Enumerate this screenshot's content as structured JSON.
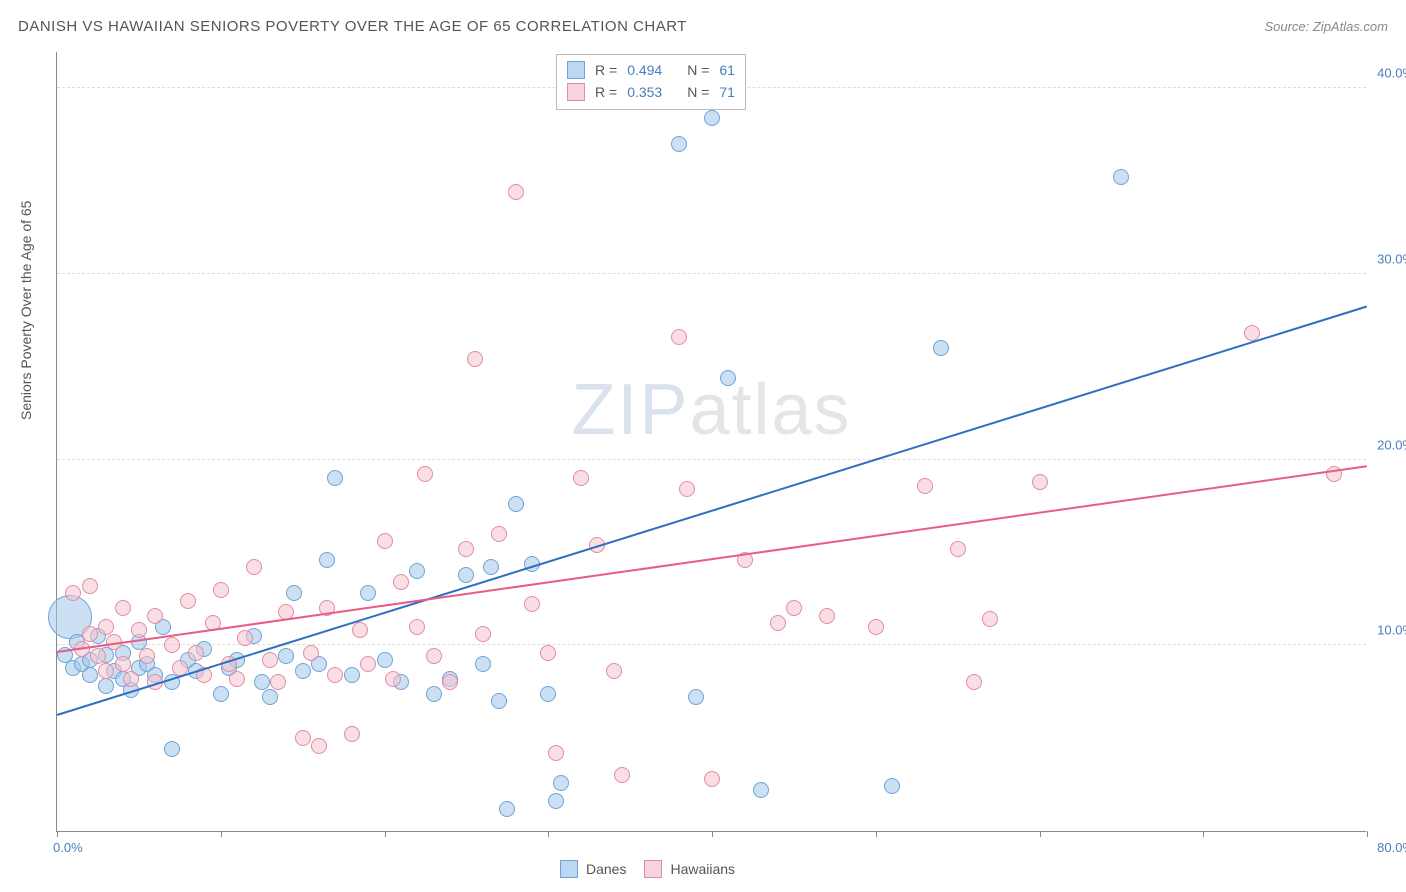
{
  "title": "DANISH VS HAWAIIAN SENIORS POVERTY OVER THE AGE OF 65 CORRELATION CHART",
  "source_prefix": "Source: ",
  "source_name": "ZipAtlas.com",
  "y_axis_title": "Seniors Poverty Over the Age of 65",
  "watermark": {
    "part1": "ZIP",
    "part2": "atlas"
  },
  "chart": {
    "type": "scatter",
    "xlim": [
      0,
      80
    ],
    "ylim": [
      0,
      42
    ],
    "x_ticks_at": [
      0,
      10,
      20,
      30,
      40,
      50,
      60,
      70,
      80
    ],
    "x_labels": {
      "min": "0.0%",
      "max": "80.0%"
    },
    "y_gridlines": [
      {
        "v": 10,
        "label": "10.0%"
      },
      {
        "v": 20,
        "label": "20.0%"
      },
      {
        "v": 30,
        "label": "30.0%"
      },
      {
        "v": 40,
        "label": "40.0%"
      }
    ],
    "background_color": "#ffffff",
    "grid_color": "#dddddd",
    "axis_color": "#888888",
    "label_color": "#4a7ebb",
    "marker_radius": 8,
    "series": [
      {
        "key": "danes",
        "name": "Danes",
        "fill": "rgba(160,198,232,0.55)",
        "stroke": "#6fa3d8",
        "trend_color": "#2e6fc4",
        "trend": {
          "x0": 0,
          "y0": 6.2,
          "x1": 80,
          "y1": 28.2
        },
        "R": "0.494",
        "N": "61",
        "points": [
          [
            0.5,
            9.5
          ],
          [
            0.8,
            11.5,
            22
          ],
          [
            1,
            8.8
          ],
          [
            1.2,
            10.2
          ],
          [
            1.5,
            9
          ],
          [
            2,
            9.2
          ],
          [
            2,
            8.4
          ],
          [
            2.5,
            10.5
          ],
          [
            3,
            7.8
          ],
          [
            3,
            9.5
          ],
          [
            3.5,
            8.6
          ],
          [
            4,
            8.2
          ],
          [
            4,
            9.6
          ],
          [
            4.5,
            7.6
          ],
          [
            5,
            8.8
          ],
          [
            5,
            10.2
          ],
          [
            5.5,
            9
          ],
          [
            6,
            8.4
          ],
          [
            6.5,
            11
          ],
          [
            7,
            8
          ],
          [
            7,
            4.4
          ],
          [
            8,
            9.2
          ],
          [
            8.5,
            8.6
          ],
          [
            9,
            9.8
          ],
          [
            10,
            7.4
          ],
          [
            10.5,
            8.8
          ],
          [
            11,
            9.2
          ],
          [
            12,
            10.5
          ],
          [
            12.5,
            8.0
          ],
          [
            13,
            7.2
          ],
          [
            14,
            9.4
          ],
          [
            14.5,
            12.8
          ],
          [
            15,
            8.6
          ],
          [
            16,
            9.0
          ],
          [
            16.5,
            14.6
          ],
          [
            17,
            19.0
          ],
          [
            18,
            8.4
          ],
          [
            19,
            12.8
          ],
          [
            20,
            9.2
          ],
          [
            21,
            8.0
          ],
          [
            22,
            14.0
          ],
          [
            23,
            7.4
          ],
          [
            24,
            8.2
          ],
          [
            25,
            13.8
          ],
          [
            26,
            9.0
          ],
          [
            26.5,
            14.2
          ],
          [
            27,
            7.0
          ],
          [
            27.5,
            1.2
          ],
          [
            28,
            17.6
          ],
          [
            29,
            14.4
          ],
          [
            30,
            7.4
          ],
          [
            30.5,
            1.6
          ],
          [
            30.8,
            2.6
          ],
          [
            38,
            37.0
          ],
          [
            39,
            7.2
          ],
          [
            40,
            38.4
          ],
          [
            41,
            24.4
          ],
          [
            43,
            2.2
          ],
          [
            51,
            2.4
          ],
          [
            54,
            26.0
          ],
          [
            65,
            35.2
          ]
        ]
      },
      {
        "key": "hawaiians",
        "name": "Hawaiians",
        "fill": "rgba(244,194,206,0.55)",
        "stroke": "#e38ba4",
        "trend_color": "#e85d85",
        "trend": {
          "x0": 0,
          "y0": 9.6,
          "x1": 80,
          "y1": 19.6
        },
        "R": "0.353",
        "N": "71",
        "points": [
          [
            1,
            12.8
          ],
          [
            1.5,
            9.8
          ],
          [
            2,
            10.6
          ],
          [
            2,
            13.2
          ],
          [
            2.5,
            9.4
          ],
          [
            3,
            11.0
          ],
          [
            3,
            8.6
          ],
          [
            3.5,
            10.2
          ],
          [
            4,
            9.0
          ],
          [
            4,
            12.0
          ],
          [
            4.5,
            8.2
          ],
          [
            5,
            10.8
          ],
          [
            5.5,
            9.4
          ],
          [
            6,
            11.6
          ],
          [
            6,
            8.0
          ],
          [
            7,
            10.0
          ],
          [
            7.5,
            8.8
          ],
          [
            8,
            12.4
          ],
          [
            8.5,
            9.6
          ],
          [
            9,
            8.4
          ],
          [
            9.5,
            11.2
          ],
          [
            10,
            13.0
          ],
          [
            10.5,
            9.0
          ],
          [
            11,
            8.2
          ],
          [
            11.5,
            10.4
          ],
          [
            12,
            14.2
          ],
          [
            13,
            9.2
          ],
          [
            13.5,
            8.0
          ],
          [
            14,
            11.8
          ],
          [
            15,
            5.0
          ],
          [
            15.5,
            9.6
          ],
          [
            16,
            4.6
          ],
          [
            16.5,
            12.0
          ],
          [
            17,
            8.4
          ],
          [
            18,
            5.2
          ],
          [
            18.5,
            10.8
          ],
          [
            19,
            9.0
          ],
          [
            20,
            15.6
          ],
          [
            20.5,
            8.2
          ],
          [
            21,
            13.4
          ],
          [
            22,
            11.0
          ],
          [
            22.5,
            19.2
          ],
          [
            23,
            9.4
          ],
          [
            24,
            8.0
          ],
          [
            25,
            15.2
          ],
          [
            25.5,
            25.4
          ],
          [
            26,
            10.6
          ],
          [
            27,
            16.0
          ],
          [
            28,
            34.4
          ],
          [
            29,
            12.2
          ],
          [
            30,
            9.6
          ],
          [
            30.5,
            4.2
          ],
          [
            32,
            19.0
          ],
          [
            33,
            15.4
          ],
          [
            34,
            8.6
          ],
          [
            34.5,
            3.0
          ],
          [
            38,
            26.6
          ],
          [
            38.5,
            18.4
          ],
          [
            40,
            2.8
          ],
          [
            42,
            14.6
          ],
          [
            44,
            11.2
          ],
          [
            45,
            12.0
          ],
          [
            47,
            11.6
          ],
          [
            50,
            11.0
          ],
          [
            53,
            18.6
          ],
          [
            55,
            15.2
          ],
          [
            56,
            8.0
          ],
          [
            57,
            11.4
          ],
          [
            60,
            18.8
          ],
          [
            73,
            26.8
          ],
          [
            78,
            19.2
          ]
        ]
      }
    ]
  },
  "stats_box": {
    "R_label": "R =",
    "N_label": "N ="
  },
  "legend": {
    "items": [
      {
        "key": "danes",
        "label": "Danes"
      },
      {
        "key": "hawaiians",
        "label": "Hawaiians"
      }
    ]
  }
}
